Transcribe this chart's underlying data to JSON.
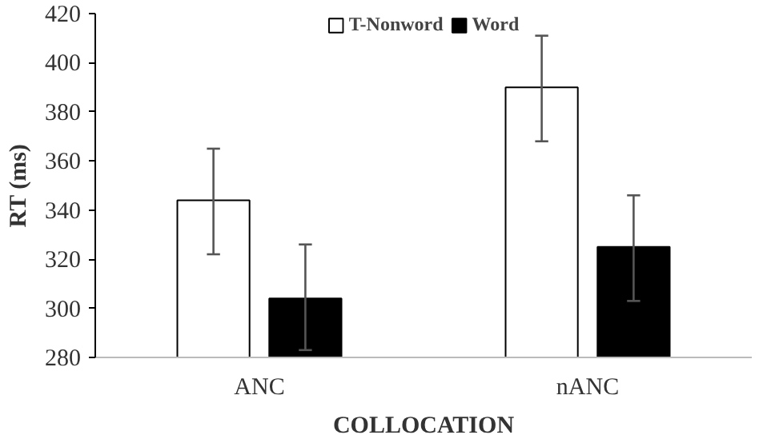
{
  "chart_data": {
    "type": "bar",
    "xlabel": "COLLOCATION",
    "ylabel": "RT (ms)",
    "categories": [
      "ANC",
      "nANC"
    ],
    "series": [
      {
        "name": "T-Nonword",
        "color": "#ffffff",
        "values": [
          344,
          390
        ],
        "errors": [
          [
            322,
            365
          ],
          [
            368,
            411
          ]
        ]
      },
      {
        "name": "Word",
        "color": "#000000",
        "values": [
          304,
          325
        ],
        "errors": [
          [
            283,
            326
          ],
          [
            303,
            346
          ]
        ]
      }
    ],
    "ylim": [
      280,
      420
    ],
    "yticks": [
      280,
      300,
      320,
      340,
      360,
      380,
      400,
      420
    ],
    "grid": false,
    "legend": "top"
  }
}
